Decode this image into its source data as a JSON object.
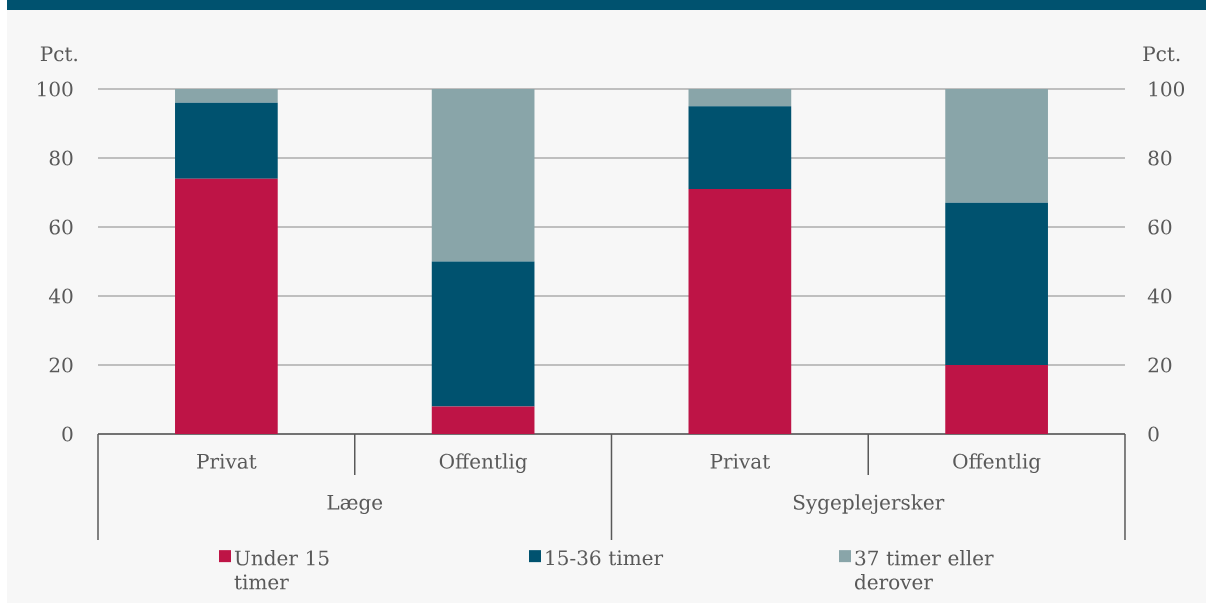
{
  "chart_data": {
    "type": "bar",
    "stacked": true,
    "categories": [
      "Privat",
      "Offentlig",
      "Privat",
      "Offentlig"
    ],
    "series": [
      {
        "name": "Under 15 timer",
        "color": "#be1446",
        "values": [
          74,
          8,
          71,
          20
        ]
      },
      {
        "name": "15-36 timer",
        "color": "#00526f",
        "values": [
          22,
          42,
          24,
          47
        ]
      },
      {
        "name": "37 timer eller derover",
        "color": "#89a5a9",
        "values": [
          4,
          50,
          5,
          33
        ]
      }
    ],
    "ylabel": "Pct.",
    "y2label": "Pct.",
    "ylim": [
      0,
      100
    ],
    "yticks": [
      0,
      20,
      40,
      60,
      80,
      100
    ],
    "y2lim": [
      0,
      100
    ],
    "y2ticks": [
      0,
      20,
      40,
      60,
      80,
      100
    ],
    "annotations": [
      "Læge",
      "Sygeplejersker"
    ],
    "grid": "y",
    "legend": "bottom"
  }
}
